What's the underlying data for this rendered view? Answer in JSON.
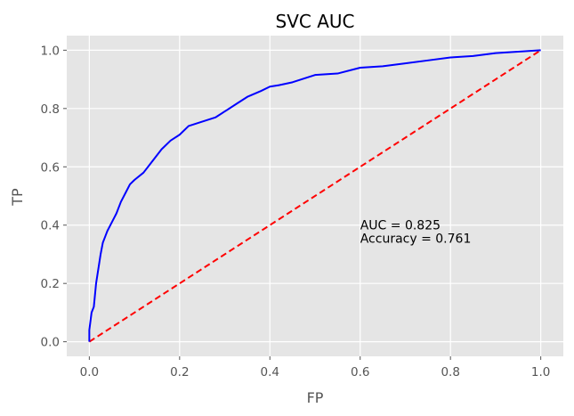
{
  "chart_data": {
    "type": "line",
    "title": "SVC AUC",
    "xlabel": "FP",
    "ylabel": "TP",
    "xlim": [
      -0.05,
      1.05
    ],
    "ylim": [
      -0.05,
      1.05
    ],
    "xticks": [
      "0.0",
      "0.2",
      "0.4",
      "0.6",
      "0.8",
      "1.0"
    ],
    "yticks": [
      "0.0",
      "0.2",
      "0.4",
      "0.6",
      "0.8",
      "1.0"
    ],
    "xtick_values": [
      0,
      0.2,
      0.4,
      0.6,
      0.8,
      1.0
    ],
    "ytick_values": [
      0,
      0.2,
      0.4,
      0.6,
      0.8,
      1.0
    ],
    "grid": true,
    "colors": {
      "background": "#e5e5e5",
      "grid": "#ffffff",
      "roc": "#0000ff",
      "baseline": "#ff0000"
    },
    "series": [
      {
        "style": "solid",
        "color": "#0000ff",
        "x": [
          0.0,
          0.0,
          0.005,
          0.01,
          0.015,
          0.02,
          0.025,
          0.03,
          0.035,
          0.04,
          0.05,
          0.06,
          0.07,
          0.08,
          0.09,
          0.1,
          0.12,
          0.14,
          0.16,
          0.18,
          0.2,
          0.22,
          0.25,
          0.28,
          0.3,
          0.33,
          0.35,
          0.38,
          0.4,
          0.42,
          0.45,
          0.48,
          0.5,
          0.55,
          0.6,
          0.65,
          0.7,
          0.75,
          0.8,
          0.85,
          0.9,
          0.95,
          1.0
        ],
        "y": [
          0.0,
          0.04,
          0.1,
          0.12,
          0.2,
          0.25,
          0.3,
          0.34,
          0.36,
          0.38,
          0.41,
          0.44,
          0.48,
          0.51,
          0.54,
          0.555,
          0.58,
          0.62,
          0.66,
          0.69,
          0.71,
          0.74,
          0.755,
          0.77,
          0.79,
          0.82,
          0.84,
          0.86,
          0.875,
          0.88,
          0.89,
          0.905,
          0.915,
          0.92,
          0.94,
          0.945,
          0.955,
          0.965,
          0.975,
          0.98,
          0.99,
          0.995,
          1.0
        ]
      },
      {
        "style": "dashed",
        "color": "#ff0000",
        "x": [
          0,
          1
        ],
        "y": [
          0,
          1
        ]
      }
    ],
    "annotations": [
      {
        "text": "AUC = 0.825",
        "x": 0.6,
        "y": 0.4
      },
      {
        "text": "Accuracy = 0.761",
        "x": 0.6,
        "y": 0.355
      }
    ]
  }
}
